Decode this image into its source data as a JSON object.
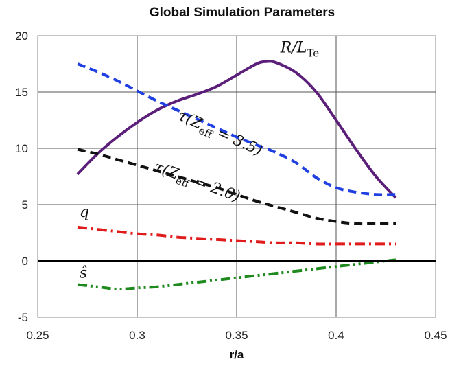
{
  "chart_data": {
    "type": "line",
    "title": "Global Simulation Parameters",
    "xlabel": "r/a",
    "ylabel": "",
    "xlim": [
      0.25,
      0.45
    ],
    "ylim": [
      -5,
      20
    ],
    "xticks": [
      "0.25",
      "0.3",
      "0.35",
      "0.4",
      "0.45"
    ],
    "yticks": [
      "-5",
      "0",
      "5",
      "10",
      "15",
      "20"
    ],
    "grid": true,
    "annotations": [
      {
        "text": "R/L_Te",
        "x": 0.372,
        "y": 18.5
      },
      {
        "text": "τ(Z_eff = 3.5)",
        "x": 0.32,
        "y": 12.6,
        "rotate": 24
      },
      {
        "text": "τ(Z_eff = 2.0)",
        "x": 0.308,
        "y": 8.0,
        "rotate": 20
      },
      {
        "text": "q",
        "x": 0.271,
        "y": 3.9
      },
      {
        "text": "ŝ",
        "x": 0.271,
        "y": -1.5
      }
    ],
    "series": [
      {
        "name": "R/L_Te",
        "color": "#5b1f7a",
        "style": "solid",
        "x": [
          0.27,
          0.28,
          0.29,
          0.3,
          0.31,
          0.32,
          0.33,
          0.34,
          0.35,
          0.36,
          0.365,
          0.37,
          0.38,
          0.39,
          0.4,
          0.41,
          0.42,
          0.43
        ],
        "y": [
          7.7,
          9.5,
          11.0,
          12.3,
          13.4,
          14.2,
          14.8,
          15.5,
          16.5,
          17.5,
          17.7,
          17.6,
          16.7,
          15.0,
          12.5,
          9.9,
          7.5,
          5.6
        ]
      },
      {
        "name": "τ(Z_eff = 3.5)",
        "color": "#1f3fe0",
        "style": "dash",
        "x": [
          0.27,
          0.28,
          0.29,
          0.3,
          0.31,
          0.32,
          0.33,
          0.34,
          0.35,
          0.36,
          0.37,
          0.38,
          0.39,
          0.4,
          0.41,
          0.42,
          0.43
        ],
        "y": [
          17.5,
          16.8,
          16.0,
          15.1,
          14.2,
          13.4,
          12.6,
          11.8,
          11.0,
          10.3,
          9.6,
          8.7,
          7.4,
          6.5,
          6.1,
          5.9,
          5.9
        ]
      },
      {
        "name": "τ(Z_eff = 2.0)",
        "color": "#111111",
        "style": "dash",
        "x": [
          0.27,
          0.28,
          0.29,
          0.3,
          0.31,
          0.32,
          0.33,
          0.34,
          0.35,
          0.36,
          0.37,
          0.38,
          0.39,
          0.4,
          0.41,
          0.42,
          0.43
        ],
        "y": [
          9.9,
          9.5,
          9.0,
          8.5,
          8.0,
          7.5,
          7.0,
          6.5,
          5.9,
          5.3,
          4.8,
          4.3,
          3.8,
          3.5,
          3.3,
          3.3,
          3.3
        ]
      },
      {
        "name": "q",
        "color": "#e01b1b",
        "style": "dashdot",
        "x": [
          0.27,
          0.28,
          0.29,
          0.3,
          0.31,
          0.32,
          0.33,
          0.34,
          0.35,
          0.36,
          0.37,
          0.38,
          0.39,
          0.4,
          0.41,
          0.42,
          0.43
        ],
        "y": [
          3.0,
          2.8,
          2.6,
          2.4,
          2.3,
          2.1,
          2.0,
          1.9,
          1.8,
          1.7,
          1.6,
          1.6,
          1.5,
          1.5,
          1.5,
          1.5,
          1.5
        ]
      },
      {
        "name": "ŝ",
        "color": "#1e8a1e",
        "style": "dashdotdot",
        "x": [
          0.27,
          0.28,
          0.29,
          0.3,
          0.31,
          0.32,
          0.33,
          0.34,
          0.35,
          0.36,
          0.37,
          0.38,
          0.39,
          0.4,
          0.41,
          0.42,
          0.43
        ],
        "y": [
          -2.1,
          -2.3,
          -2.5,
          -2.4,
          -2.3,
          -2.1,
          -1.9,
          -1.7,
          -1.5,
          -1.3,
          -1.1,
          -0.9,
          -0.7,
          -0.5,
          -0.3,
          -0.1,
          0.1
        ]
      },
      {
        "name": "zero",
        "color": "#000000",
        "style": "solid",
        "x": [
          0.25,
          0.45
        ],
        "y": [
          0,
          0
        ]
      }
    ]
  }
}
